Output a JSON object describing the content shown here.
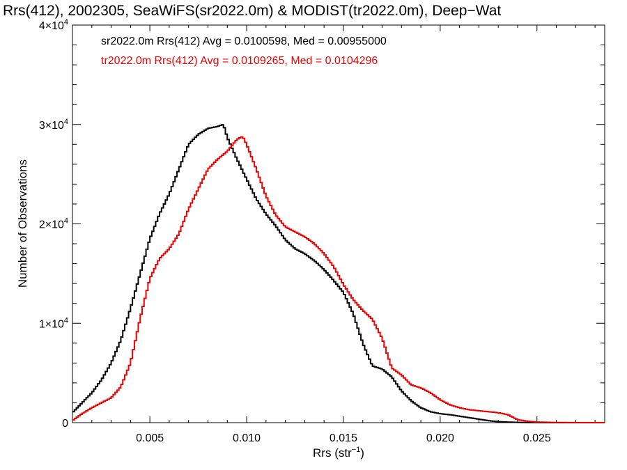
{
  "chart_data": {
    "type": "histogram-step",
    "title": "Rrs(412), 2002305, SeaWiFS(sr2022.0m) & MODIST(tr2022.0m), Deep−Wat",
    "xlabel": "Rrs (str",
    "xlabel_sup": "−1",
    "xlabel_close": ")",
    "ylabel": "Number of Observations",
    "xlim": [
      0.001,
      0.0285
    ],
    "ylim": [
      0,
      40000
    ],
    "x_ticks": [
      {
        "value": 0.005,
        "label": "0.005"
      },
      {
        "value": 0.01,
        "label": "0.010"
      },
      {
        "value": 0.015,
        "label": "0.015"
      },
      {
        "value": 0.02,
        "label": "0.020"
      },
      {
        "value": 0.025,
        "label": "0.025"
      }
    ],
    "y_ticks": [
      {
        "value": 0,
        "mant": "0",
        "exp": ""
      },
      {
        "value": 10000,
        "mant": "1×10",
        "exp": "4"
      },
      {
        "value": 20000,
        "mant": "2×10",
        "exp": "4"
      },
      {
        "value": 30000,
        "mant": "3×10",
        "exp": "4"
      },
      {
        "value": 40000,
        "mant": "4×10",
        "exp": "4"
      }
    ],
    "annotations": [
      {
        "text": "sr2022.0m Rrs(412) Avg = 0.0100598, Med = 0.00955000",
        "color": "#000000"
      },
      {
        "text": "tr2022.0m Rrs(412) Avg = 0.0109265, Med = 0.0104296",
        "color": "#ee0000"
      }
    ],
    "grid": false,
    "series": [
      {
        "color": "#000000",
        "x": [
          0.001,
          0.0015,
          0.002,
          0.0025,
          0.003,
          0.0035,
          0.004,
          0.0045,
          0.005,
          0.0055,
          0.006,
          0.0065,
          0.007,
          0.0075,
          0.008,
          0.0085,
          0.0088,
          0.009,
          0.0095,
          0.01,
          0.0105,
          0.011,
          0.0115,
          0.012,
          0.0125,
          0.013,
          0.0135,
          0.014,
          0.0145,
          0.015,
          0.0155,
          0.016,
          0.0165,
          0.017,
          0.0175,
          0.018,
          0.0185,
          0.019,
          0.0195,
          0.02,
          0.0205,
          0.021,
          0.0215,
          0.022,
          0.0225,
          0.023,
          0.0235,
          0.024,
          0.0245,
          0.025,
          0.026,
          0.027,
          0.0285
        ],
        "values": [
          1000,
          2000,
          3000,
          4300,
          6000,
          8300,
          11500,
          15000,
          18500,
          21000,
          23000,
          25500,
          28000,
          29000,
          29600,
          29800,
          30000,
          28700,
          26500,
          24500,
          22500,
          21000,
          19800,
          18400,
          17500,
          17000,
          16300,
          15400,
          14300,
          13100,
          11000,
          8000,
          5700,
          5400,
          4600,
          3200,
          2200,
          1500,
          1100,
          900,
          800,
          650,
          500,
          350,
          200,
          100,
          60,
          30,
          10,
          5,
          0,
          0,
          0
        ]
      },
      {
        "color": "#ee0000",
        "x": [
          0.001,
          0.0015,
          0.002,
          0.0025,
          0.003,
          0.0035,
          0.004,
          0.0045,
          0.005,
          0.0055,
          0.006,
          0.0065,
          0.007,
          0.0075,
          0.008,
          0.0085,
          0.009,
          0.0095,
          0.0098,
          0.01,
          0.0105,
          0.011,
          0.0115,
          0.012,
          0.0125,
          0.013,
          0.0135,
          0.014,
          0.0145,
          0.015,
          0.0155,
          0.016,
          0.0165,
          0.017,
          0.0175,
          0.018,
          0.0185,
          0.019,
          0.0195,
          0.02,
          0.0205,
          0.021,
          0.0215,
          0.022,
          0.0225,
          0.023,
          0.0235,
          0.024,
          0.0245,
          0.025,
          0.026,
          0.027,
          0.0285
        ],
        "values": [
          200,
          900,
          1500,
          2000,
          2500,
          3600,
          6000,
          10500,
          14500,
          16500,
          17500,
          19000,
          21500,
          23500,
          25500,
          26500,
          27300,
          28500,
          28800,
          28000,
          25500,
          22800,
          20900,
          19700,
          19200,
          18700,
          18000,
          17000,
          15700,
          13900,
          12400,
          11300,
          10400,
          8500,
          5500,
          4800,
          3800,
          3500,
          3000,
          2300,
          1800,
          1500,
          1300,
          1200,
          1100,
          1000,
          800,
          300,
          150,
          60,
          20,
          5,
          0
        ]
      }
    ]
  }
}
